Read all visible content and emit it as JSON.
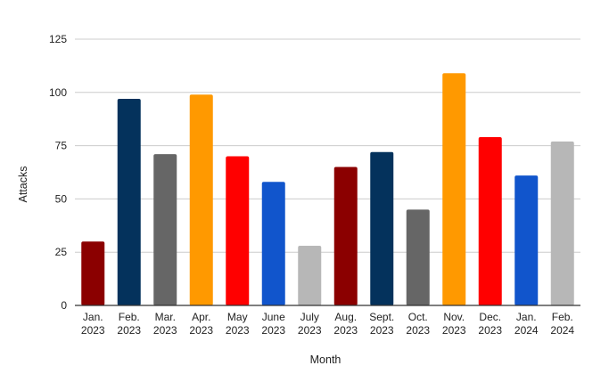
{
  "chart_data": {
    "type": "bar",
    "xlabel": "Month",
    "ylabel": "Attacks",
    "ylim": [
      0,
      125
    ],
    "yticks": [
      0,
      25,
      50,
      75,
      100,
      125
    ],
    "grid": true,
    "categories": [
      [
        "Jan.",
        "2023"
      ],
      [
        "Feb.",
        "2023"
      ],
      [
        "Mar.",
        "2023"
      ],
      [
        "Apr.",
        "2023"
      ],
      [
        "May",
        "2023"
      ],
      [
        "June",
        "2023"
      ],
      [
        "July",
        "2023"
      ],
      [
        "Aug.",
        "2023"
      ],
      [
        "Sept.",
        "2023"
      ],
      [
        "Oct.",
        "2023"
      ],
      [
        "Nov.",
        "2023"
      ],
      [
        "Dec.",
        "2023"
      ],
      [
        "Jan.",
        "2024"
      ],
      [
        "Feb.",
        "2024"
      ]
    ],
    "values": [
      30,
      97,
      71,
      99,
      70,
      58,
      28,
      65,
      72,
      45,
      109,
      79,
      61,
      77
    ],
    "colors": [
      "#8b0000",
      "#04325c",
      "#666666",
      "#ff9900",
      "#ff0000",
      "#1155cc",
      "#b7b7b7",
      "#8b0000",
      "#04325c",
      "#666666",
      "#ff9900",
      "#ff0000",
      "#1155cc",
      "#b7b7b7"
    ],
    "gridline_color": "#cccccc",
    "axis_color": "#333333"
  }
}
